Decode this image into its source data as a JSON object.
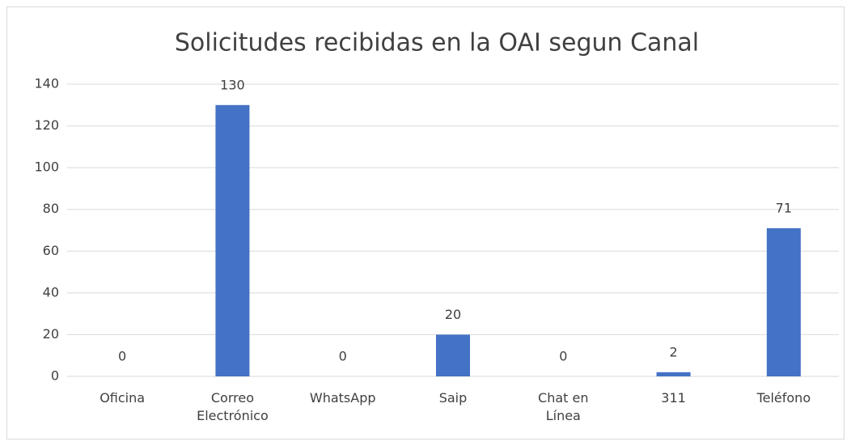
{
  "chart_data": {
    "type": "bar",
    "title": "Solicitudes recibidas en la OAI segun Canal",
    "categories": [
      "Oficina",
      "Correo Electrónico",
      "WhatsApp",
      "Saip",
      "Chat en Línea",
      "311",
      "Teléfono"
    ],
    "values": [
      0,
      130,
      0,
      20,
      0,
      2,
      71
    ],
    "color": "#4472c4",
    "ylim": [
      0,
      140
    ],
    "yticks": [
      0,
      20,
      40,
      60,
      80,
      100,
      120,
      140
    ],
    "grid": true
  }
}
